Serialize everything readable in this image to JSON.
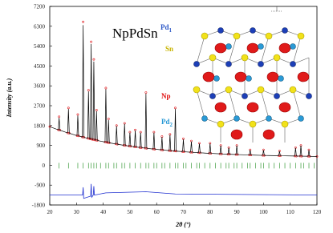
{
  "chart_data": {
    "type": "powder-diffraction",
    "title": "NpPdSn",
    "x_label": "2θ (°)",
    "y_label": "Intensity (a.u.)",
    "xlim": [
      20,
      120
    ],
    "ylim": [
      -1800,
      7200
    ],
    "xticks": [
      20,
      30,
      40,
      50,
      60,
      70,
      80,
      90,
      100,
      110,
      120
    ],
    "yticks": [
      -1800,
      -900,
      0,
      900,
      1800,
      2700,
      3600,
      4500,
      5400,
      6300,
      7200
    ],
    "x": [
      20,
      23.2,
      23.5,
      23.8,
      26.7,
      27,
      27.3,
      30.2,
      30.5,
      30.8,
      32.2,
      32.5,
      32.8,
      34.2,
      34.5,
      34.8,
      35.2,
      35.5,
      35.8,
      36.2,
      36.5,
      36.8,
      37.2,
      37.5,
      37.8,
      40.7,
      41,
      41.3,
      41.7,
      42,
      42.3,
      44.7,
      45,
      45.3,
      47.7,
      48,
      48.3,
      49.7,
      50,
      50.3,
      51.7,
      52,
      52.3,
      53.7,
      54,
      54.3,
      55.7,
      56,
      56.3,
      58.7,
      59,
      59.3,
      61.7,
      62,
      62.3,
      64.7,
      65,
      65.3,
      66.7,
      67,
      67.3,
      69.7,
      70,
      70.3,
      72.7,
      73,
      73.3,
      75.7,
      76,
      76.3,
      79.7,
      80,
      80.3,
      83.7,
      84,
      84.3,
      86.7,
      87,
      87.3,
      89.7,
      90,
      90.3,
      94.7,
      95,
      95.3,
      99.7,
      100,
      100.3,
      105.7,
      106,
      106.3,
      111.7,
      112,
      112.3,
      113.7,
      114,
      114.3,
      116.7,
      117,
      117.3,
      120
    ],
    "series": [
      {
        "style": "points",
        "color": "#e0191e",
        "values": [
          1750,
          1605,
          2200,
          1590,
          1465,
          2600,
          1453,
          1342,
          2300,
          1332,
          1280,
          6500,
          1266,
          1222,
          3400,
          1206,
          1192,
          5600,
          1176,
          1166,
          4800,
          1150,
          1139,
          2500,
          1124,
          1052,
          3500,
          1040,
          1029,
          2100,
          1016,
          965,
          1800,
          953,
          905,
          1900,
          895,
          870,
          1500,
          860,
          837,
          1600,
          827,
          806,
          1500,
          796,
          776,
          3300,
          766,
          736,
          1500,
          728,
          700,
          1300,
          692,
          665,
          1400,
          659,
          646,
          2600,
          640,
          618,
          1200,
          612,
          591,
          1100,
          587,
          569,
          1000,
          565,
          541,
          1000,
          537,
          519,
          900,
          515,
          501,
          800,
          499,
          487,
          900,
          485,
          466,
          700,
          464,
          448,
          700,
          446,
          431,
          650,
          429,
          417,
          800,
          415,
          413,
          900,
          411,
          407,
          700,
          405,
          400
        ]
      },
      {
        "style": "line",
        "color": "#000000",
        "values": [
          1750,
          1605,
          2150,
          1590,
          1465,
          2550,
          1453,
          1342,
          2250,
          1332,
          1280,
          6350,
          1266,
          1222,
          3350,
          1206,
          1192,
          5500,
          1176,
          1166,
          4700,
          1150,
          1139,
          2450,
          1124,
          1052,
          3450,
          1040,
          1029,
          2050,
          1016,
          965,
          1780,
          953,
          905,
          1880,
          895,
          870,
          1480,
          860,
          837,
          1580,
          827,
          806,
          1480,
          796,
          776,
          3250,
          766,
          736,
          1480,
          728,
          700,
          1280,
          692,
          665,
          1380,
          659,
          646,
          2560,
          640,
          618,
          1180,
          612,
          591,
          1080,
          587,
          569,
          990,
          565,
          541,
          990,
          537,
          519,
          890,
          515,
          501,
          790,
          499,
          487,
          890,
          485,
          466,
          690,
          464,
          448,
          690,
          446,
          431,
          640,
          429,
          417,
          790,
          415,
          413,
          890,
          411,
          407,
          690,
          405,
          400
        ]
      }
    ],
    "bragg_color": "#3a9a3a",
    "bragg_ticks": [
      23.5,
      27,
      30.5,
      32.5,
      34.5,
      35.5,
      36.5,
      37.5,
      39,
      41,
      42,
      44,
      45,
      47,
      48,
      50,
      52,
      54,
      56,
      57,
      59,
      60,
      62,
      63,
      65,
      67,
      68,
      70,
      71,
      73,
      75,
      76,
      78,
      80,
      82,
      84,
      86,
      87,
      89,
      90,
      92,
      94,
      95,
      97,
      99,
      100,
      102,
      104,
      106,
      108,
      110,
      112,
      114,
      115,
      117,
      119
    ],
    "difference": {
      "color": "#1f2fd0",
      "x": [
        20,
        32.3,
        32.5,
        32.7,
        35.3,
        35.5,
        35.7,
        36.3,
        36.5,
        36.7,
        41,
        56,
        67,
        120
      ],
      "values": [
        -1350,
        -1350,
        -1000,
        -1500,
        -1400,
        -850,
        -1450,
        -1350,
        -950,
        -1350,
        -1250,
        -1200,
        -1300,
        -1350
      ]
    },
    "inset_labels": [
      {
        "text": "Pd",
        "sub": "1",
        "color": "#2a56c6"
      },
      {
        "text": "Sn",
        "color": "#c8b400"
      },
      {
        "text": "Np",
        "color": "#e01010"
      },
      {
        "text": "Pd",
        "sub": "2",
        "color": "#2a9ad6"
      }
    ]
  }
}
